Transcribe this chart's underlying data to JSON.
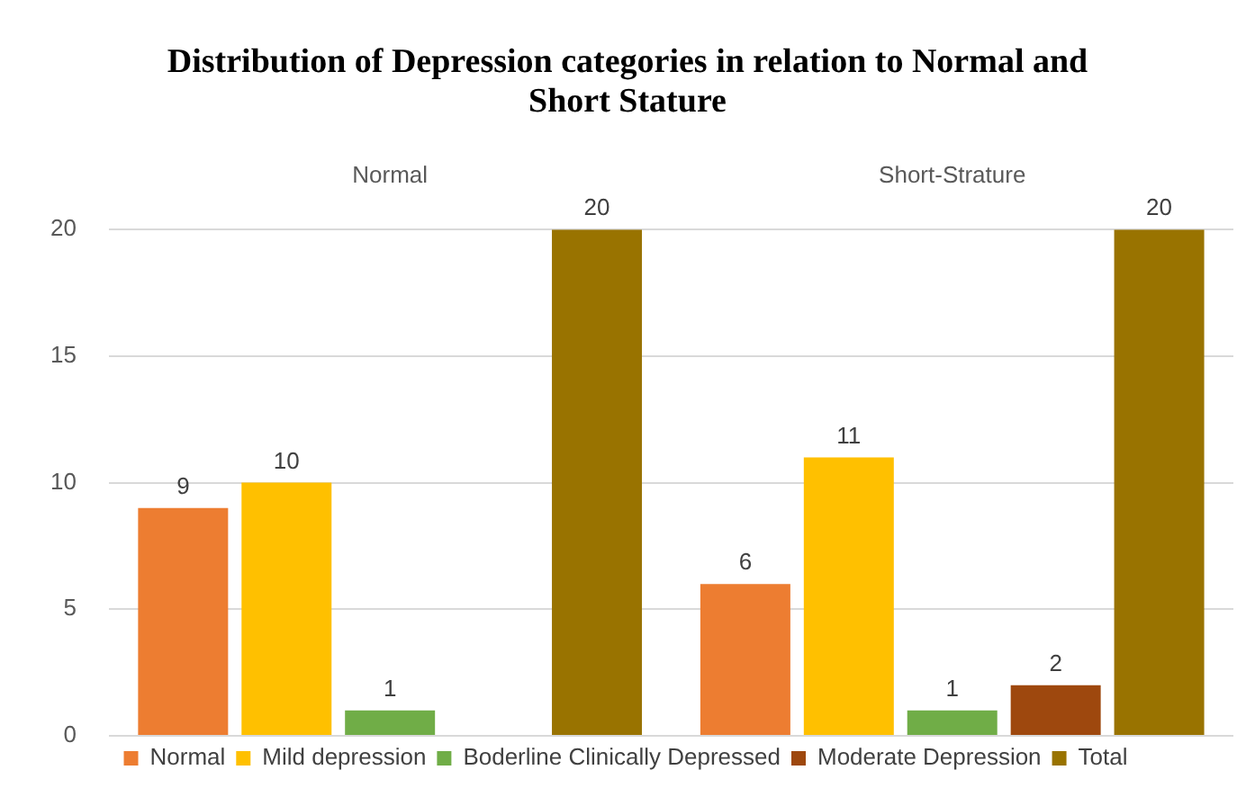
{
  "chart_data": {
    "type": "bar",
    "title": "Distribution of Depression categories in relation to Normal and Short Stature",
    "categories": [
      "Normal",
      "Short-Strature"
    ],
    "series": [
      {
        "name": "Normal",
        "color": "#ed7d31",
        "values": [
          9,
          6
        ]
      },
      {
        "name": "Mild depression",
        "color": "#ffc000",
        "values": [
          10,
          11
        ]
      },
      {
        "name": "Boderline Clinically Depressed",
        "color": "#70ad47",
        "values": [
          1,
          1
        ]
      },
      {
        "name": "Moderate Depression",
        "color": "#9e480e",
        "values": [
          null,
          2
        ]
      },
      {
        "name": "Total",
        "color": "#997300",
        "values": [
          20,
          20
        ]
      }
    ],
    "ylim": [
      0,
      20
    ],
    "yticks": [
      0,
      5,
      10,
      15,
      20
    ],
    "grid": "y",
    "legend": "bottom",
    "data_labels": true
  }
}
